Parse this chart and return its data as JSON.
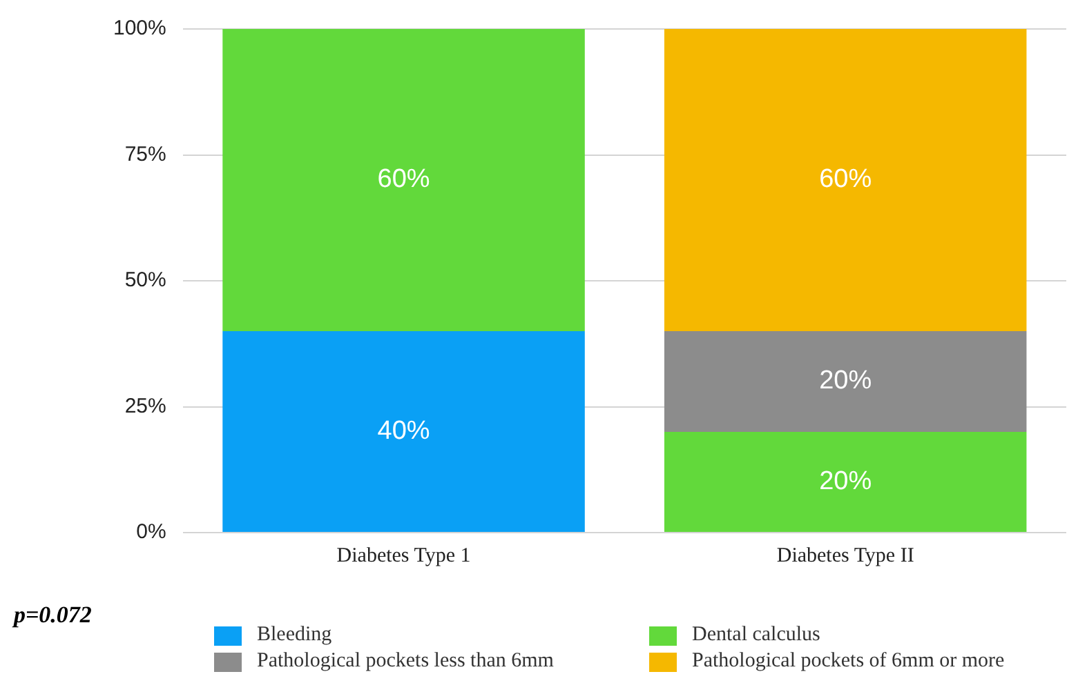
{
  "chart_data": {
    "type": "bar",
    "stacked": true,
    "categories": [
      "Diabetes Type 1",
      "Diabetes Type II"
    ],
    "series": [
      {
        "name": "Bleeding",
        "color": "#0aa0f5",
        "values": [
          40,
          null
        ],
        "value_labels": [
          "40%",
          null
        ]
      },
      {
        "name": "Dental calculus",
        "color": "#62d93b",
        "values": [
          60,
          20
        ],
        "value_labels": [
          "60%",
          "20%"
        ]
      },
      {
        "name": "Pathological pockets less than 6mm",
        "color": "#8c8c8c",
        "values": [
          null,
          20
        ],
        "value_labels": [
          null,
          "20%"
        ]
      },
      {
        "name": "Pathological pockets of 6mm or more",
        "color": "#f5b800",
        "values": [
          null,
          60
        ],
        "value_labels": [
          null,
          "60%"
        ]
      }
    ],
    "ylim": [
      0,
      100
    ],
    "yticks": [
      {
        "value": 0,
        "label": "0%"
      },
      {
        "value": 25,
        "label": "25%"
      },
      {
        "value": 50,
        "label": "50%"
      },
      {
        "value": 75,
        "label": "75%"
      },
      {
        "value": 100,
        "label": "100%"
      }
    ],
    "grid": "y",
    "legend": "bottom",
    "annotations": [
      "p=0.072"
    ]
  }
}
